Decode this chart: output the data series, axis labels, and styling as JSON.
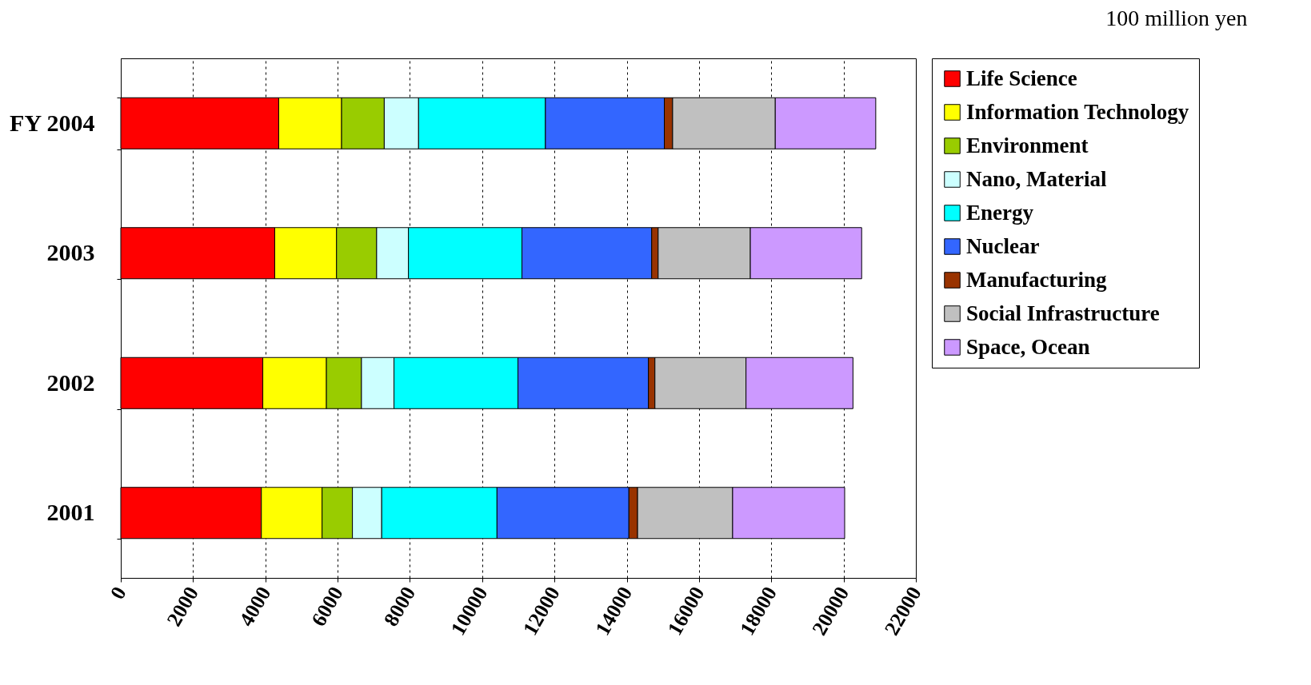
{
  "chart_data": {
    "type": "bar",
    "orientation": "horizontal",
    "stacked": true,
    "annotations": [
      "100 million yen"
    ],
    "categories": [
      "FY 2004",
      "2003",
      "2002",
      "2001"
    ],
    "series": [
      {
        "name": "Life Science",
        "color": "#ff0000",
        "values": [
          4370,
          4260,
          3930,
          3890
        ]
      },
      {
        "name": "Information Technology",
        "color": "#ffff00",
        "values": [
          1740,
          1710,
          1760,
          1680
        ]
      },
      {
        "name": "Environment",
        "color": "#99cc00",
        "values": [
          1180,
          1110,
          970,
          840
        ]
      },
      {
        "name": "Nano, Material",
        "color": "#ccffff",
        "values": [
          950,
          880,
          900,
          810
        ]
      },
      {
        "name": "Energy",
        "color": "#00ffff",
        "values": [
          3510,
          3140,
          3430,
          3190
        ]
      },
      {
        "name": "Nuclear",
        "color": "#3366ff",
        "values": [
          3290,
          3590,
          3610,
          3650
        ]
      },
      {
        "name": "Manufacturing",
        "color": "#993300",
        "values": [
          230,
          180,
          180,
          240
        ]
      },
      {
        "name": "Social Infrastructure",
        "color": "#c0c0c0",
        "values": [
          2840,
          2550,
          2520,
          2630
        ]
      },
      {
        "name": "Space, Ocean",
        "color": "#cc99ff",
        "values": [
          2780,
          3080,
          2960,
          3100
        ]
      }
    ],
    "xlim": [
      0,
      22000
    ],
    "xticks": [
      0,
      2000,
      4000,
      6000,
      8000,
      10000,
      12000,
      14000,
      16000,
      18000,
      20000,
      22000
    ],
    "grid": "x",
    "legend": "right"
  }
}
